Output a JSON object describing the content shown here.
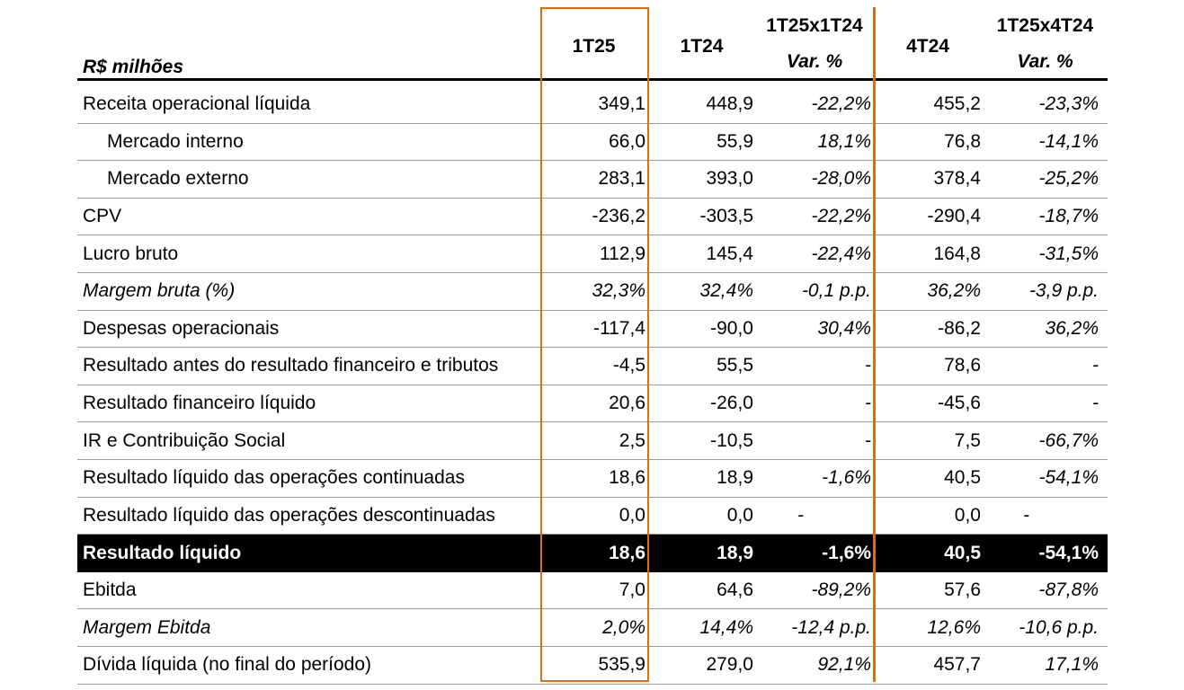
{
  "header": {
    "unit_label": "R$ milhões",
    "col_1t25": "1T25",
    "col_1t24": "1T24",
    "col_var1_top": "1T25x1T24",
    "col_var1_bottom": "Var. %",
    "col_4t24": "4T24",
    "col_var2_top": "1T25x4T24",
    "col_var2_bottom": "Var. %"
  },
  "rows": [
    {
      "label": "Receita operacional líquida",
      "v1t25": "349,1",
      "v1t24": "448,9",
      "var1": "-22,2%",
      "v4t24": "455,2",
      "var2": "-23,3%"
    },
    {
      "label": "Mercado interno",
      "v1t25": "66,0",
      "v1t24": "55,9",
      "var1": "18,1%",
      "v4t24": "76,8",
      "var2": "-14,1%"
    },
    {
      "label": "Mercado externo",
      "v1t25": "283,1",
      "v1t24": "393,0",
      "var1": "-28,0%",
      "v4t24": "378,4",
      "var2": "-25,2%"
    },
    {
      "label": "CPV",
      "v1t25": "-236,2",
      "v1t24": "-303,5",
      "var1": "-22,2%",
      "v4t24": "-290,4",
      "var2": "-18,7%"
    },
    {
      "label": "Lucro bruto",
      "v1t25": "112,9",
      "v1t24": "145,4",
      "var1": "-22,4%",
      "v4t24": "164,8",
      "var2": "-31,5%"
    },
    {
      "label": "Margem bruta (%)",
      "v1t25": "32,3%",
      "v1t24": "32,4%",
      "var1": "-0,1 p.p.",
      "v4t24": "36,2%",
      "var2": "-3,9 p.p."
    },
    {
      "label": "Despesas operacionais",
      "v1t25": "-117,4",
      "v1t24": "-90,0",
      "var1": "30,4%",
      "v4t24": "-86,2",
      "var2": "36,2%"
    },
    {
      "label": "Resultado antes do resultado financeiro e tributos",
      "v1t25": "-4,5",
      "v1t24": "55,5",
      "var1": "-",
      "v4t24": "78,6",
      "var2": "-"
    },
    {
      "label": "Resultado financeiro líquido",
      "v1t25": "20,6",
      "v1t24": "-26,0",
      "var1": "-",
      "v4t24": "-45,6",
      "var2": "-"
    },
    {
      "label": "IR e Contribuição Social",
      "v1t25": "2,5",
      "v1t24": "-10,5",
      "var1": "-",
      "v4t24": "7,5",
      "var2": "-66,7%"
    },
    {
      "label": "Resultado líquido das operações continuadas",
      "v1t25": "18,6",
      "v1t24": "18,9",
      "var1": "-1,6%",
      "v4t24": "40,5",
      "var2": "-54,1%"
    },
    {
      "label": "Resultado líquido das operações descontinuadas",
      "v1t25": "0,0",
      "v1t24": "0,0",
      "var1": "-",
      "v4t24": "0,0",
      "var2": "-"
    },
    {
      "label": "Resultado líquido",
      "v1t25": "18,6",
      "v1t24": "18,9",
      "var1": "-1,6%",
      "v4t24": "40,5",
      "var2": "-54,1%"
    },
    {
      "label": "Ebitda",
      "v1t25": "7,0",
      "v1t24": "64,6",
      "var1": "-89,2%",
      "v4t24": "57,6",
      "var2": "-87,8%"
    },
    {
      "label": "Margem Ebitda",
      "v1t25": "2,0%",
      "v1t24": "14,4%",
      "var1": "-12,4 p.p.",
      "v4t24": "12,6%",
      "var2": "-10,6 p.p."
    },
    {
      "label": "Dívida líquida (no final do período)",
      "v1t25": "535,9",
      "v1t24": "279,0",
      "var1": "92,1%",
      "v4t24": "457,7",
      "var2": "17,1%"
    }
  ],
  "colors": {
    "highlight": "#E36C0A",
    "total_row_bg": "#000000",
    "total_row_text": "#FFFFFF"
  }
}
